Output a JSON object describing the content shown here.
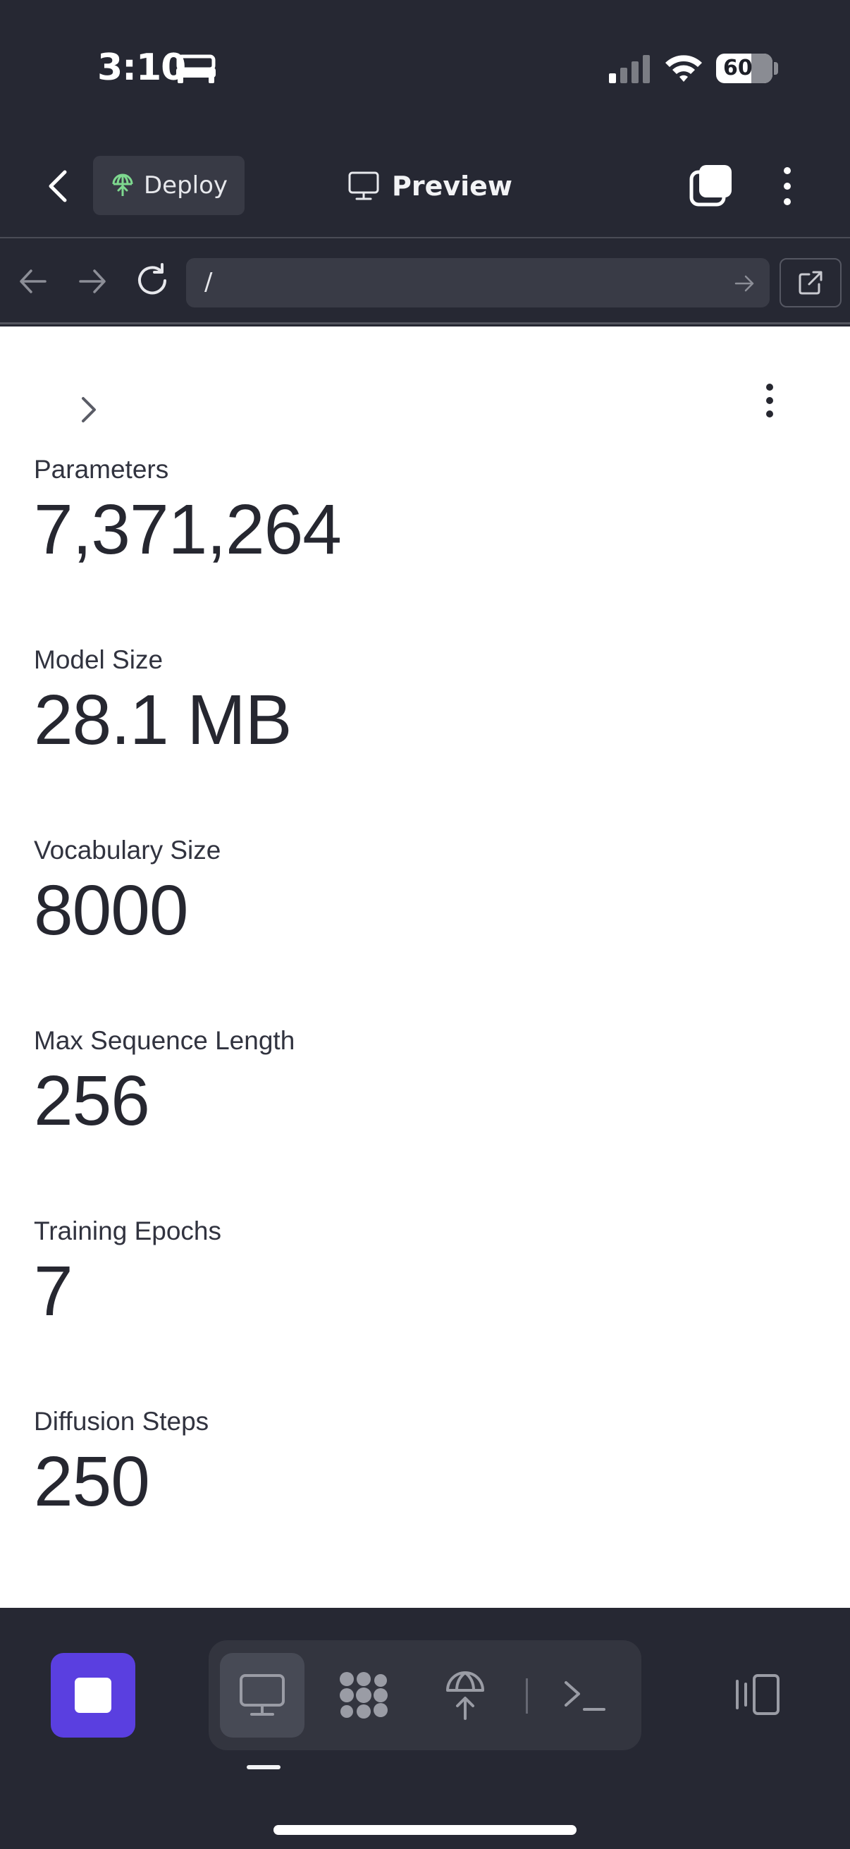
{
  "status_bar": {
    "time": "3:10",
    "battery": "60",
    "icons": [
      "bed-icon",
      "signal-icon",
      "wifi-icon",
      "battery-icon"
    ]
  },
  "header": {
    "deploy_label": "Deploy",
    "preview_label": "Preview",
    "icons": [
      "chevron-left-icon",
      "deploy-icon",
      "monitor-icon",
      "tabs-icon",
      "more-vertical-icon"
    ]
  },
  "url_bar": {
    "url": "/",
    "icons": [
      "arrow-left-icon",
      "arrow-right-icon",
      "reload-icon",
      "arrow-right-icon",
      "external-link-icon"
    ]
  },
  "content": {
    "metrics": [
      {
        "label": "Parameters",
        "value": "7,371,264"
      },
      {
        "label": "Model Size",
        "value": "28.1 MB"
      },
      {
        "label": "Vocabulary Size",
        "value": "8000"
      },
      {
        "label": "Max Sequence Length",
        "value": "256"
      },
      {
        "label": "Training Epochs",
        "value": "7"
      },
      {
        "label": "Diffusion Steps",
        "value": "250"
      }
    ]
  },
  "bottom_bar": {
    "tools": [
      "monitor-icon",
      "packages-icon",
      "deploy-icon",
      "terminal-icon"
    ],
    "active_tool": "monitor-icon",
    "accent_color": "#5a3fe0"
  },
  "colors": {
    "chrome_background": "#262833",
    "content_background": "#ffffff",
    "text_dark": "#262730"
  }
}
